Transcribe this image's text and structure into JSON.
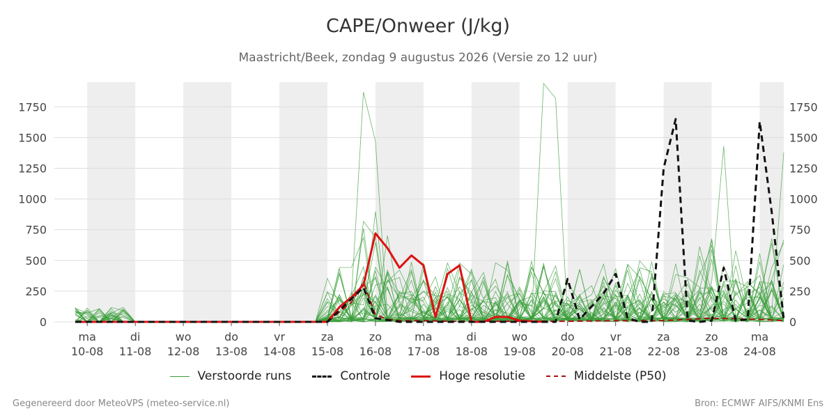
{
  "title": "CAPE/Onweer (J/kg)",
  "subtitle": "Maastricht/Beek, zondag  9 augustus 2026 (Versie zo 12 uur)",
  "footer_left": "Gegenereerd door MeteoVPS (meteo-service.nl)",
  "footer_right": "Bron: ECMWF AIFS/KNMI Ens",
  "colors": {
    "ensemble": "#3a9e3a",
    "control": "#111111",
    "highres": "#dd1111",
    "median": "#aa1111",
    "weekend_band": "#eeeeee",
    "grid": "#dddddd"
  },
  "legend": [
    {
      "label": "Verstoorde runs",
      "style": "ensemble"
    },
    {
      "label": "Controle",
      "style": "control"
    },
    {
      "label": "Hoge resolutie",
      "style": "highres"
    },
    {
      "label": "Middelste (P50)",
      "style": "median"
    }
  ],
  "chart_data": {
    "type": "line",
    "ylim": [
      0,
      1950
    ],
    "yticks": [
      0,
      250,
      500,
      750,
      1000,
      1250,
      1500,
      1750
    ],
    "xlim": [
      -0.25,
      14.5
    ],
    "x_unit": "days since 10-08",
    "day_ticks": [
      {
        "dow": "ma",
        "date": "10-08"
      },
      {
        "dow": "di",
        "date": "11-08"
      },
      {
        "dow": "wo",
        "date": "12-08"
      },
      {
        "dow": "do",
        "date": "13-08"
      },
      {
        "dow": "vr",
        "date": "14-08"
      },
      {
        "dow": "za",
        "date": "15-08"
      },
      {
        "dow": "zo",
        "date": "16-08"
      },
      {
        "dow": "ma",
        "date": "17-08"
      },
      {
        "dow": "di",
        "date": "18-08"
      },
      {
        "dow": "wo",
        "date": "19-08"
      },
      {
        "dow": "do",
        "date": "20-08"
      },
      {
        "dow": "vr",
        "date": "21-08"
      },
      {
        "dow": "za",
        "date": "22-08"
      },
      {
        "dow": "zo",
        "date": "23-08"
      },
      {
        "dow": "ma",
        "date": "24-08"
      }
    ],
    "shaded_bands": [
      [
        0,
        1
      ],
      [
        2,
        3
      ],
      [
        4,
        5
      ],
      [
        6,
        7
      ],
      [
        8,
        9
      ],
      [
        10,
        11
      ],
      [
        12,
        13
      ],
      [
        14,
        14.5
      ]
    ],
    "control": {
      "name": "Controle",
      "x": [
        -0.25,
        0,
        5,
        5.75,
        6,
        6.5,
        9,
        9.75,
        10,
        10.25,
        10.75,
        11,
        11.25,
        11.5,
        11.75,
        12,
        12.25,
        12.5,
        12.75,
        13,
        13.25,
        13.5,
        13.75,
        14,
        14.25,
        14.5
      ],
      "y": [
        0,
        0,
        0,
        280,
        30,
        0,
        0,
        0,
        350,
        20,
        230,
        390,
        30,
        0,
        0,
        1250,
        1650,
        10,
        0,
        10,
        440,
        10,
        20,
        1630,
        890,
        20
      ]
    },
    "highres": {
      "name": "Hoge resolutie",
      "x": [
        -0.25,
        0,
        5,
        5.25,
        5.5,
        5.75,
        6,
        6.25,
        6.5,
        6.75,
        7,
        7.25,
        7.5,
        7.75,
        8,
        8.25,
        8.5,
        8.75,
        9,
        9.5
      ],
      "y": [
        0,
        0,
        0,
        120,
        200,
        300,
        720,
        600,
        440,
        540,
        460,
        40,
        390,
        460,
        0,
        0,
        40,
        40,
        10,
        0
      ]
    },
    "median": {
      "name": "Middelste (P50)",
      "x": [
        -0.25,
        0,
        5,
        5.25,
        5.5,
        5.75,
        6,
        6.25,
        6.5,
        7,
        7.5,
        8,
        9,
        10,
        11,
        12,
        13,
        14,
        14.5
      ],
      "y": [
        0,
        0,
        0,
        80,
        160,
        320,
        60,
        20,
        10,
        10,
        5,
        5,
        5,
        5,
        10,
        10,
        30,
        20,
        10
      ]
    },
    "ensemble_peaks": [
      {
        "x": 5.75,
        "y": 1870
      },
      {
        "x": 6.0,
        "y": 1470
      },
      {
        "x": 9.5,
        "y": 1940
      },
      {
        "x": 9.75,
        "y": 1820
      },
      {
        "x": 13.25,
        "y": 1430
      },
      {
        "x": 14.5,
        "y": 1380
      }
    ]
  }
}
